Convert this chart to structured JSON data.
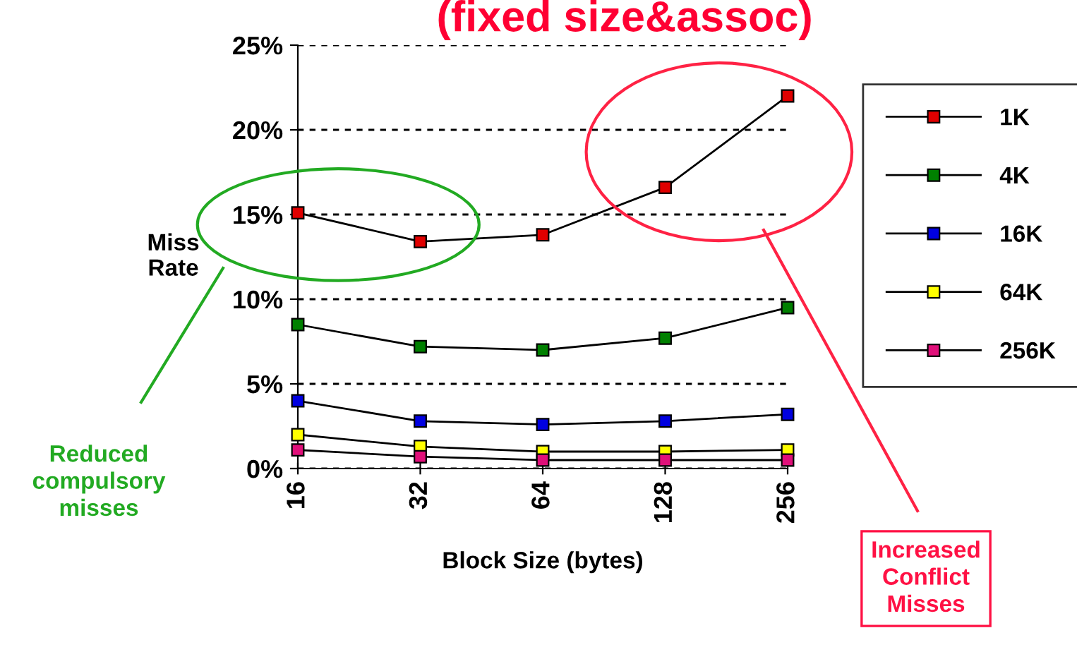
{
  "chart_data": {
    "type": "line",
    "title": "(fixed size&assoc)",
    "xlabel": "Block Size (bytes)",
    "ylabel": "Miss\nRate",
    "categories": [
      "16",
      "32",
      "64",
      "128",
      "256"
    ],
    "series": [
      {
        "name": "1K",
        "color": "#e00000",
        "values": [
          15.1,
          13.4,
          13.8,
          16.6,
          22.0
        ]
      },
      {
        "name": "4K",
        "color": "#008000",
        "values": [
          8.5,
          7.2,
          7.0,
          7.7,
          9.5
        ]
      },
      {
        "name": "16K",
        "color": "#0000e0",
        "values": [
          4.0,
          2.8,
          2.6,
          2.8,
          3.2
        ]
      },
      {
        "name": "64K",
        "color": "#ffff00",
        "values": [
          2.0,
          1.3,
          1.0,
          1.0,
          1.1
        ]
      },
      {
        "name": "256K",
        "color": "#e0107a",
        "values": [
          1.1,
          0.7,
          0.5,
          0.5,
          0.5
        ]
      }
    ],
    "ylim": [
      0,
      25
    ],
    "yticks": [
      {
        "value": 0,
        "label": "0%"
      },
      {
        "value": 5,
        "label": "5%"
      },
      {
        "value": 10,
        "label": "10%"
      },
      {
        "value": 15,
        "label": "15%"
      },
      {
        "value": 20,
        "label": "20%"
      },
      {
        "value": 25,
        "label": "25%"
      }
    ],
    "grid": "y",
    "legend": "right",
    "marker": "square",
    "line_style": "solid",
    "annotations": [
      "Reduced\ncompulsory\nmisses",
      "Increased\nConflict\nMisses"
    ]
  }
}
